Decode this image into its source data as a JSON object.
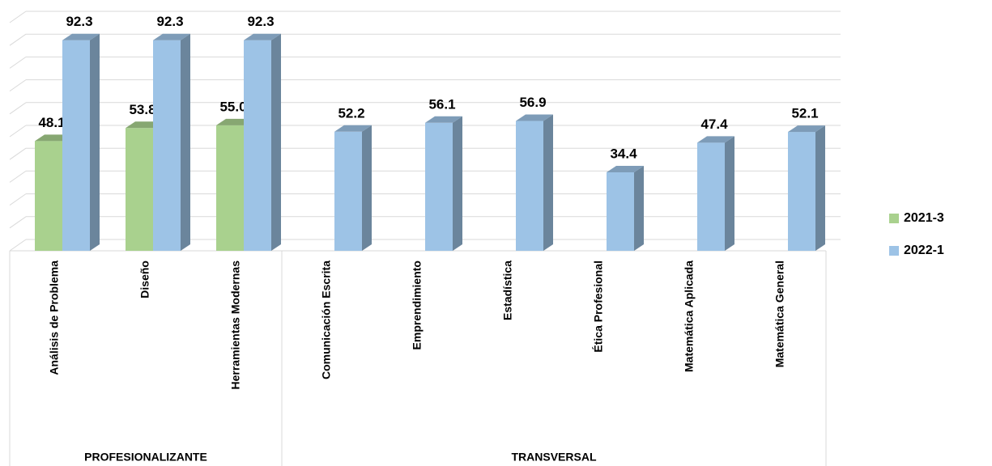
{
  "chart_data": {
    "type": "bar3d",
    "groups": [
      {
        "label": "PROFESIONALIZANTE",
        "categories": [
          "Análisis de Problema",
          "Diseño",
          "Herramientas Modernas"
        ]
      },
      {
        "label": "TRANSVERSAL",
        "categories": [
          "Comunicación Escrita",
          "Emprendimiento",
          "Estadística",
          "Ética Profesional",
          "Matemática Aplicada",
          "Matemática General"
        ]
      }
    ],
    "series": [
      {
        "name": "2021-3",
        "color": "#a9d18e",
        "values": [
          48.1,
          53.8,
          55.0,
          null,
          null,
          null,
          null,
          null,
          null
        ],
        "value_labels": [
          "48.1",
          "53.8",
          "55.0",
          null,
          null,
          null,
          null,
          null,
          null
        ]
      },
      {
        "name": "2022-1",
        "color": "#9dc3e6",
        "values": [
          92.3,
          92.3,
          92.3,
          52.2,
          56.1,
          56.9,
          34.4,
          47.4,
          52.1
        ],
        "value_labels": [
          "92.3",
          "92.3",
          "92.3",
          "52.2",
          "56.1",
          "56.9",
          "34.4",
          "47.4",
          "52.1"
        ]
      }
    ],
    "ylim": [
      0,
      100
    ],
    "yticks": [
      0,
      10,
      20,
      30,
      40,
      50,
      60,
      70,
      80,
      90,
      100
    ],
    "grid": true,
    "legend": "right"
  }
}
